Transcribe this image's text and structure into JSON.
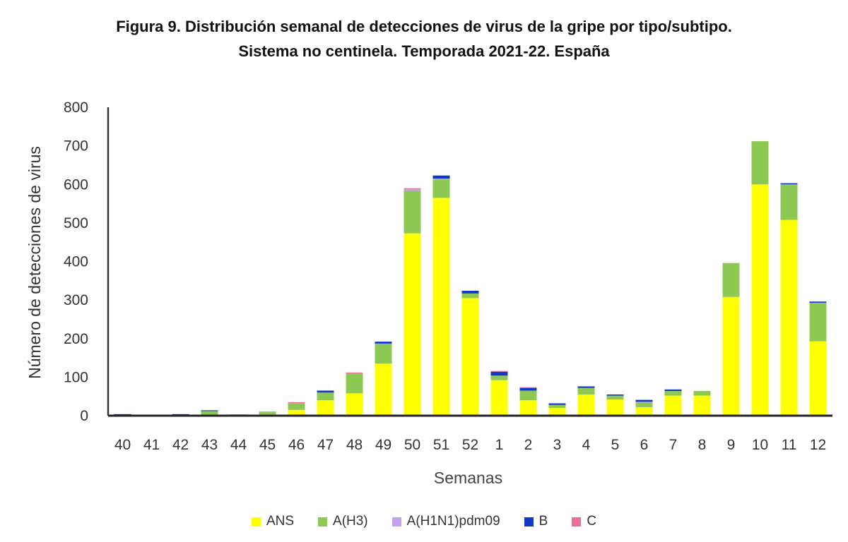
{
  "chart_data": {
    "type": "bar",
    "stacked": true,
    "title_line1": "Figura 9. Distribución semanal de detecciones de virus de la gripe por tipo/subtipo.",
    "title_line2": "Sistema no centinela. Temporada 2021-22. España",
    "xlabel": "Semanas",
    "ylabel": "Número de detecciones de virus",
    "ylim": [
      0,
      800
    ],
    "yticks": [
      0,
      100,
      200,
      300,
      400,
      500,
      600,
      700,
      800
    ],
    "categories": [
      "40",
      "41",
      "42",
      "43",
      "44",
      "45",
      "46",
      "47",
      "48",
      "49",
      "50",
      "51",
      "52",
      "1",
      "2",
      "3",
      "4",
      "5",
      "6",
      "7",
      "8",
      "9",
      "10",
      "11",
      "12"
    ],
    "series": [
      {
        "name": "ANS",
        "color": "#FFFF00",
        "values": [
          0,
          0,
          0,
          2,
          0,
          3,
          15,
          40,
          58,
          135,
          473,
          565,
          305,
          92,
          40,
          20,
          55,
          42,
          22,
          52,
          52,
          308,
          600,
          508,
          193
        ]
      },
      {
        "name": "A(H3)",
        "color": "#8DC853",
        "values": [
          0,
          2,
          0,
          10,
          0,
          6,
          18,
          20,
          52,
          52,
          110,
          48,
          12,
          12,
          25,
          8,
          17,
          10,
          12,
          12,
          12,
          88,
          112,
          92,
          100
        ]
      },
      {
        "name": "A(H1N1)pdm09",
        "color": "#C4A0F0",
        "values": [
          0,
          0,
          0,
          0,
          0,
          2,
          0,
          0,
          0,
          0,
          4,
          2,
          0,
          0,
          0,
          0,
          0,
          0,
          2,
          0,
          0,
          0,
          0,
          0,
          0
        ]
      },
      {
        "name": "B",
        "color": "#1436C8",
        "values": [
          4,
          0,
          4,
          2,
          3,
          0,
          0,
          5,
          0,
          5,
          0,
          8,
          7,
          10,
          7,
          4,
          4,
          3,
          5,
          4,
          0,
          0,
          0,
          3,
          3
        ]
      },
      {
        "name": "C",
        "color": "#F06C9B",
        "values": [
          0,
          0,
          0,
          0,
          0,
          0,
          2,
          0,
          2,
          0,
          3,
          0,
          0,
          2,
          2,
          0,
          0,
          0,
          0,
          0,
          0,
          0,
          0,
          0,
          0
        ]
      }
    ],
    "legend_position": "bottom",
    "grid": false
  }
}
